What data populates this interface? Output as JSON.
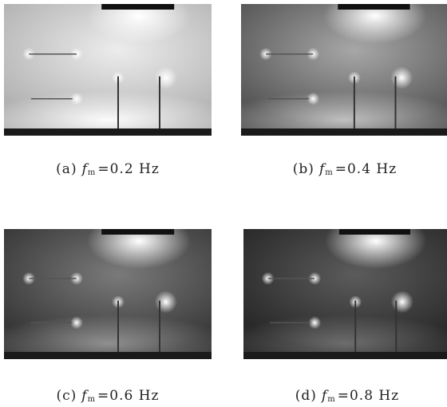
{
  "panels": [
    {
      "label": "(a)",
      "symbol": "f",
      "subscript": "m",
      "value": "=0.2 Hz"
    },
    {
      "label": "(b)",
      "symbol": "f",
      "subscript": "m",
      "value": "=0.4 Hz"
    },
    {
      "label": "(c)",
      "symbol": "f",
      "subscript": "m",
      "value": "=0.6 Hz"
    },
    {
      "label": "(d)",
      "symbol": "f",
      "subscript": "m",
      "value": "=0.8 Hz"
    }
  ]
}
